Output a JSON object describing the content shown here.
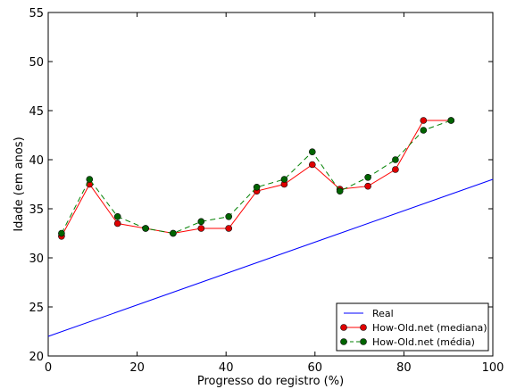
{
  "chart_data": {
    "type": "line",
    "title": "",
    "xlabel": "Progresso do registro (%)",
    "ylabel": "Idade (em anos)",
    "xlim": [
      0,
      100
    ],
    "ylim": [
      20,
      55
    ],
    "xticks": [
      0,
      20,
      40,
      60,
      80,
      100
    ],
    "yticks": [
      20,
      25,
      30,
      35,
      40,
      45,
      50,
      55
    ],
    "grid": false,
    "legend_position": "bottom-right",
    "series": [
      {
        "name": "Real",
        "color": "#0000ff",
        "style": "solid",
        "marker": "none",
        "x": [
          0,
          100
        ],
        "y": [
          22,
          38
        ]
      },
      {
        "name": "How-Old.net (mediana)",
        "color": "#ff0000",
        "marker_color": "#e00000",
        "style": "solid",
        "marker": "circle",
        "x": [
          3,
          9.3,
          15.6,
          21.9,
          28.1,
          34.4,
          40.6,
          46.9,
          53.1,
          59.4,
          65.6,
          71.9,
          78.1,
          84.4,
          90.6
        ],
        "y": [
          32.2,
          37.5,
          33.5,
          33.0,
          32.5,
          33.0,
          33.0,
          36.8,
          37.5,
          39.5,
          37.0,
          37.3,
          39.0,
          44.0,
          44.0
        ]
      },
      {
        "name": "How-Old.net (média)",
        "color": "#008000",
        "marker_color": "#006400",
        "style": "dashed",
        "marker": "circle",
        "x": [
          3,
          9.3,
          15.6,
          21.9,
          28.1,
          34.4,
          40.6,
          46.9,
          53.1,
          59.4,
          65.6,
          71.9,
          78.1,
          84.4,
          90.6
        ],
        "y": [
          32.5,
          38.0,
          34.2,
          33.0,
          32.5,
          33.7,
          34.2,
          37.2,
          38.0,
          40.8,
          36.8,
          38.2,
          40.0,
          43.0,
          44.0
        ]
      }
    ]
  }
}
